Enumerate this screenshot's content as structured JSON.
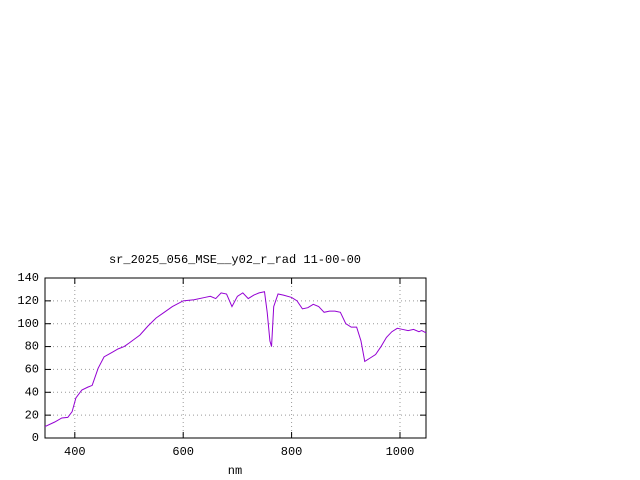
{
  "chart_data": {
    "type": "line",
    "title": "sr_2025_056_MSE__y02_r_rad 11-00-00",
    "x_label": "nm",
    "x": [
      345,
      363,
      376,
      387,
      395,
      402,
      413,
      424,
      432,
      443,
      454,
      469,
      480,
      491,
      500,
      520,
      535,
      550,
      565,
      580,
      600,
      620,
      640,
      650,
      660,
      670,
      680,
      690,
      700,
      710,
      720,
      730,
      740,
      750,
      755,
      760,
      763,
      767,
      775,
      785,
      800,
      810,
      820,
      830,
      840,
      850,
      860,
      870,
      880,
      890,
      900,
      910,
      920,
      928,
      935,
      945,
      955,
      965,
      975,
      985,
      995,
      1005,
      1015,
      1025,
      1035,
      1040,
      1048
    ],
    "series": [
      {
        "name": "sr_2025_056_MSE__y02_r_rad",
        "color": "#9400d3",
        "values": [
          10,
          14,
          17.5,
          18,
          23,
          35,
          42,
          44.5,
          46,
          61,
          71,
          75,
          78,
          80,
          83,
          90,
          98,
          105,
          110,
          115,
          120,
          121,
          123,
          124,
          122,
          127,
          126,
          115,
          124,
          127,
          122,
          125,
          127,
          128,
          110,
          85,
          80,
          115,
          126,
          125,
          123,
          120,
          113,
          114,
          117,
          115,
          110,
          111,
          111,
          110,
          100,
          97,
          97,
          85,
          67,
          70,
          73,
          80,
          88,
          93,
          96,
          95,
          94,
          95,
          93,
          94,
          92
        ]
      }
    ],
    "xlim": [
      345,
      1048
    ],
    "ylim": [
      0,
      140
    ],
    "xticks": [
      400,
      600,
      800,
      1000
    ],
    "yticks": [
      0,
      20,
      40,
      60,
      80,
      100,
      120,
      140
    ],
    "grid": true
  }
}
